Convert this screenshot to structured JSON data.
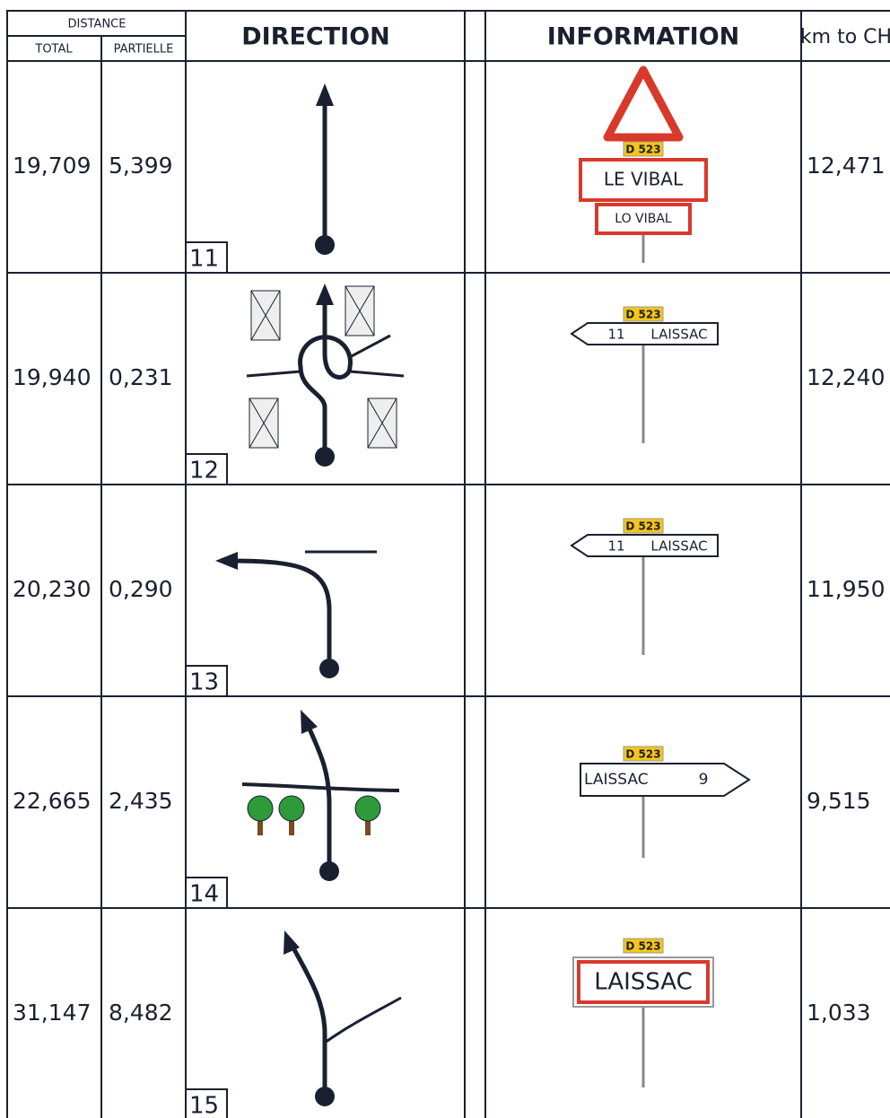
{
  "header": {
    "distance": "DISTANCE",
    "total": "TOTAL",
    "partielle": "PARTIELLE",
    "direction": "DIRECTION",
    "information": "INFORMATION",
    "km_to_ch": "km to CH"
  },
  "rows": [
    {
      "total": "19,709",
      "partielle": "5,399",
      "number": "11",
      "sign": {
        "road": "D 523",
        "texts": [
          "LE VIBAL",
          "LO VIBAL"
        ]
      },
      "km_to_ch": "12,471"
    },
    {
      "total": "19,940",
      "partielle": "0,231",
      "number": "12",
      "sign": {
        "road": "D 523",
        "texts": [
          "11",
          "LAISSAC"
        ]
      },
      "km_to_ch": "12,240"
    },
    {
      "total": "20,230",
      "partielle": "0,290",
      "number": "13",
      "sign": {
        "road": "D 523",
        "texts": [
          "11",
          "LAISSAC"
        ]
      },
      "km_to_ch": "11,950"
    },
    {
      "total": "22,665",
      "partielle": "2,435",
      "number": "14",
      "sign": {
        "road": "D 523",
        "texts": [
          "LAISSAC",
          "9"
        ]
      },
      "km_to_ch": "9,515"
    },
    {
      "total": "31,147",
      "partielle": "8,482",
      "number": "15",
      "sign": {
        "road": "D 523",
        "texts": [
          "LAISSAC"
        ]
      },
      "km_to_ch": "1,033"
    }
  ]
}
